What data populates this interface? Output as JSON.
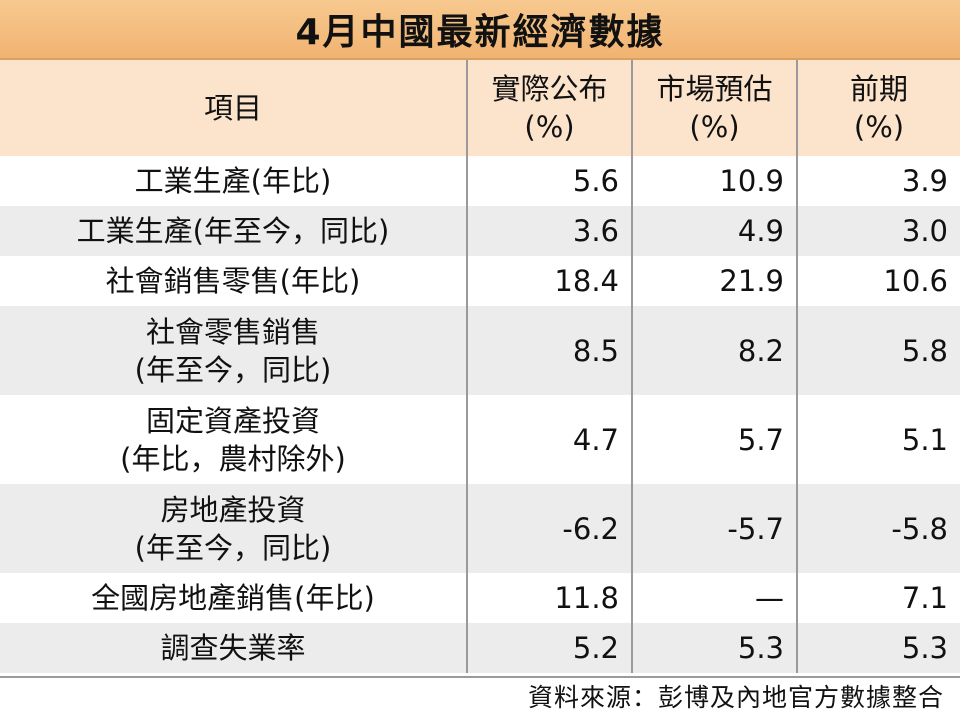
{
  "title": "4月中國最新經濟數據",
  "table": {
    "header": [
      [
        "項目"
      ],
      [
        "實際公布",
        "(%)"
      ],
      [
        "市場預估",
        "(%)"
      ],
      [
        "前期",
        "(%)"
      ]
    ],
    "rows": [
      [
        [
          "工業生產(年比)"
        ],
        "5.6",
        "10.9",
        "3.9"
      ],
      [
        [
          "工業生產(年至今，同比)"
        ],
        "3.6",
        "4.9",
        "3.0"
      ],
      [
        [
          "社會銷售零售(年比)"
        ],
        "18.4",
        "21.9",
        "10.6"
      ],
      [
        [
          "社會零售銷售",
          "(年至今，同比)"
        ],
        "8.5",
        "8.2",
        "5.8"
      ],
      [
        [
          "固定資產投資",
          "(年比，農村除外)"
        ],
        "4.7",
        "5.7",
        "5.1"
      ],
      [
        [
          "房地產投資",
          "(年至今，同比)"
        ],
        "-6.2",
        "-5.7",
        "-5.8"
      ],
      [
        [
          "全國房地產銷售(年比)"
        ],
        "11.8",
        "—",
        "7.1"
      ],
      [
        [
          "調查失業率"
        ],
        "5.2",
        "5.3",
        "5.3"
      ]
    ]
  },
  "source": "資料來源：彭博及內地官方數據整合"
}
